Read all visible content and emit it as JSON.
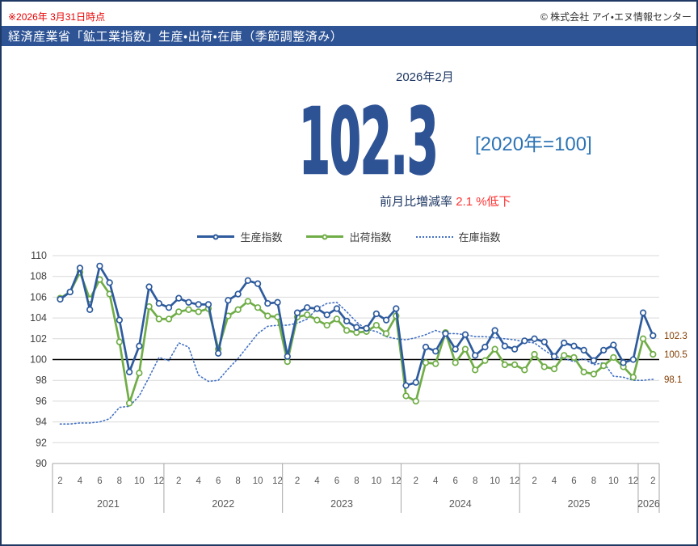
{
  "page": {
    "note_left": "※2026年 3月31日時点",
    "copyright": "© 株式会社 アイ・エヌ情報センター",
    "banner_title": "経済産業省「鉱工業指数」生産・出荷・在庫（季節調整済み）",
    "period": "2026年2月",
    "headline_value": "102.3",
    "base_note": "[2020年=100]",
    "mom_label": "前月比増減率",
    "mom_value": "2.1 %低下",
    "accent_navy": "#1f3864",
    "accent_banner_blue": "#2e5496",
    "accent_number_blue": "#2e5395",
    "accent_red": "#ff3333"
  },
  "legend": [
    {
      "label": "生産指数",
      "color": "#2e5b9d",
      "style": "solid-circle"
    },
    {
      "label": "出荷指数",
      "color": "#70ad47",
      "style": "solid-circle"
    },
    {
      "label": "在庫指数",
      "color": "#4472c4",
      "style": "dotted"
    }
  ],
  "chart_data": {
    "type": "line",
    "title": "鉱工業指数（季節調整済み） 2020年=100",
    "x_start": "2021-02",
    "x_step": "month",
    "x_tick_months_shown": [
      2,
      4,
      6,
      8,
      10,
      12
    ],
    "years": [
      "2021",
      "2022",
      "2023",
      "2024",
      "2025",
      "2026"
    ],
    "ylim": [
      90,
      110
    ],
    "ytick_step": 2,
    "baseline_value": 100,
    "grid": true,
    "legend_position": "top",
    "series": [
      {
        "name": "在庫指数",
        "color": "#4472c4",
        "line": "dotted",
        "markers": false,
        "values": [
          93.8,
          93.8,
          93.9,
          93.9,
          94.0,
          94.3,
          95.4,
          95.5,
          96.5,
          98.3,
          100.2,
          99.9,
          101.6,
          101.2,
          98.5,
          97.9,
          98.0,
          99.1,
          100.1,
          101.3,
          102.5,
          103.2,
          103.3,
          103.3,
          103.5,
          103.9,
          104.9,
          105.4,
          105.5,
          104.6,
          103.6,
          102.9,
          102.7,
          102.2,
          102.0,
          101.9,
          102.1,
          102.4,
          102.8,
          102.5,
          102.5,
          102.4,
          102.2,
          102.2,
          102.1,
          102.0,
          101.9,
          101.7,
          101.6,
          100.9,
          100.3,
          100.1,
          99.8,
          100.1,
          99.5,
          99.7,
          98.4,
          98.3,
          98.0,
          98.0,
          98.1
        ]
      },
      {
        "name": "出荷指数",
        "color": "#70ad47",
        "line": "solid",
        "markers": true,
        "values": [
          105.9,
          106.5,
          108.4,
          105.8,
          107.7,
          106.3,
          101.7,
          95.8,
          98.7,
          105.1,
          103.9,
          103.9,
          104.6,
          104.8,
          104.6,
          104.9,
          101.0,
          104.2,
          104.8,
          105.6,
          105.0,
          104.2,
          104.1,
          99.8,
          104.1,
          104.3,
          103.8,
          103.3,
          103.9,
          102.8,
          102.6,
          102.7,
          103.3,
          102.5,
          104.2,
          96.5,
          96.0,
          99.7,
          99.6,
          102.6,
          99.7,
          101.0,
          99.0,
          99.9,
          101.0,
          99.5,
          99.5,
          99.0,
          100.5,
          99.3,
          99.1,
          100.4,
          100.2,
          98.8,
          98.6,
          99.4,
          100.2,
          99.3,
          98.3,
          102.0,
          100.5
        ]
      },
      {
        "name": "生産指数",
        "color": "#2e5b9d",
        "line": "solid",
        "markers": true,
        "values": [
          105.8,
          106.5,
          108.8,
          104.8,
          109.0,
          107.4,
          103.8,
          98.8,
          101.3,
          107.0,
          105.4,
          105.0,
          105.9,
          105.5,
          105.3,
          105.3,
          100.6,
          105.7,
          106.3,
          107.6,
          107.3,
          105.4,
          105.5,
          100.3,
          104.5,
          105.0,
          104.9,
          104.3,
          104.9,
          103.7,
          103.1,
          103.0,
          104.4,
          103.8,
          104.9,
          97.5,
          97.8,
          101.2,
          100.8,
          102.5,
          101.0,
          102.4,
          100.4,
          101.2,
          102.8,
          101.3,
          101.0,
          101.8,
          102.0,
          101.7,
          100.3,
          101.6,
          101.3,
          100.9,
          99.9,
          100.9,
          101.4,
          99.7,
          100.0,
          104.5,
          102.3
        ]
      }
    ],
    "end_labels": [
      {
        "text": "102.3",
        "value": 102.3,
        "series": "生産指数"
      },
      {
        "text": "100.5",
        "value": 100.5,
        "series": "出荷指数"
      },
      {
        "text": "98.1",
        "value": 98.1,
        "series": "在庫指数"
      }
    ],
    "end_label_color": "#833c00"
  }
}
